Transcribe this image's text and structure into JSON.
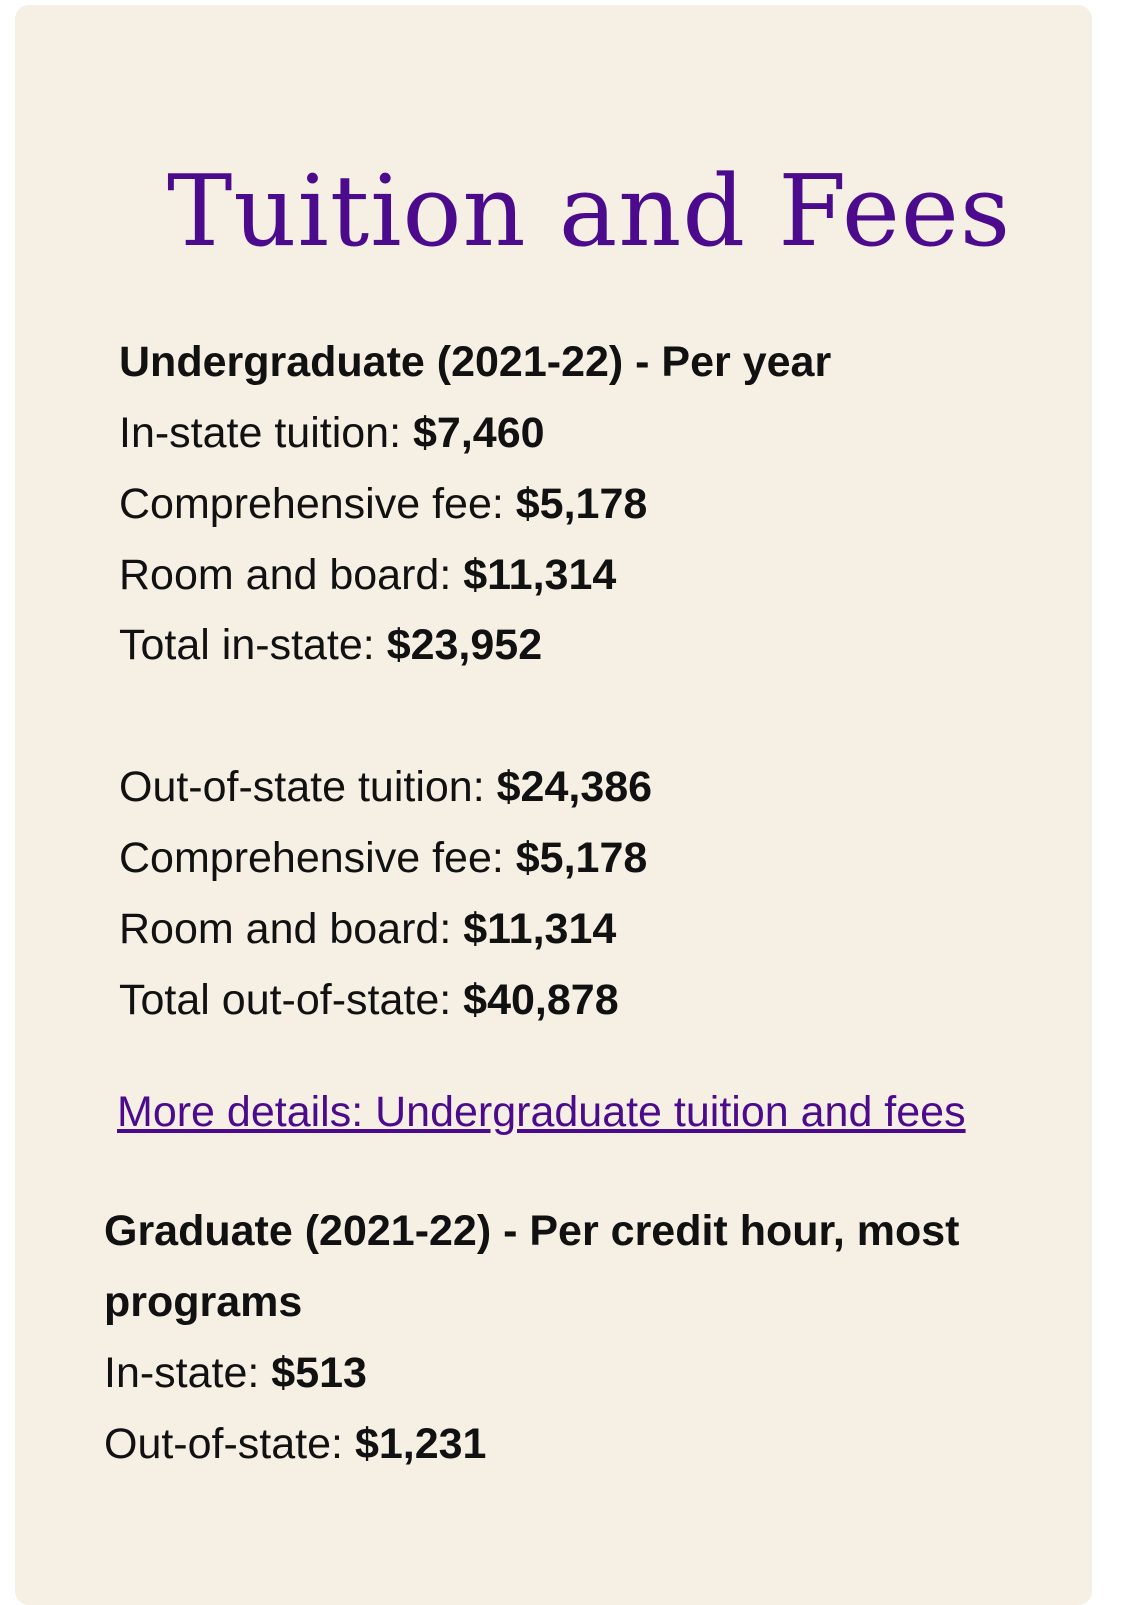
{
  "title": "Tuition and Fees",
  "undergrad": {
    "heading": "Undergraduate (2021-22) - Per year",
    "in_state": [
      {
        "label": "In-state tuition: ",
        "value": "$7,460"
      },
      {
        "label": "Comprehensive fee: ",
        "value": "$5,178"
      },
      {
        "label": "Room and board: ",
        "value": "$11,314"
      },
      {
        "label": "Total in-state: ",
        "value": "$23,952"
      }
    ],
    "out_state": [
      {
        "label": "Out-of-state tuition: ",
        "value": "$24,386"
      },
      {
        "label": "Comprehensive fee: ",
        "value": "$5,178"
      },
      {
        "label": "Room and board: ",
        "value": "$11,314"
      },
      {
        "label": "Total out-of-state: ",
        "value": "$40,878"
      }
    ],
    "link": "More details: Undergraduate tuition and fees"
  },
  "grad": {
    "heading_1": "Graduate (2021-22) - Per credit hour, most",
    "heading_2": "programs",
    "items": [
      {
        "label": "In-state: ",
        "value": "$513"
      },
      {
        "label": "Out-of-state: ",
        "value": "$1,231"
      }
    ]
  }
}
